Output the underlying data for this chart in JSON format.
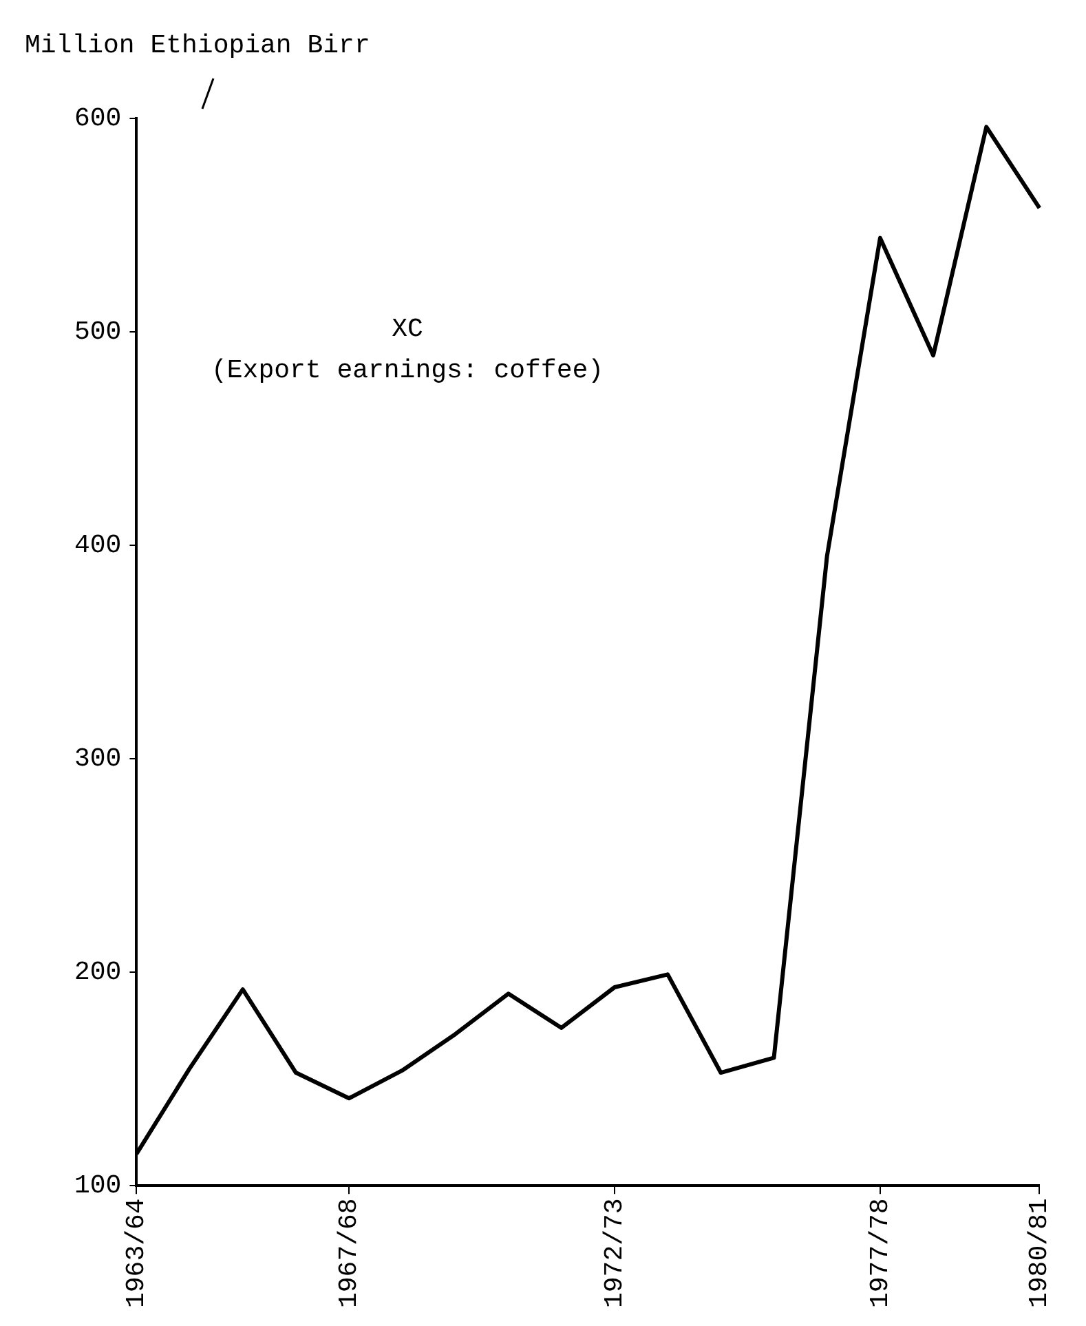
{
  "chart_data": {
    "type": "line",
    "ylabel": "Million Ethiopian Birr",
    "annotations": [
      "XC",
      "(Export earnings: coffee)"
    ],
    "categories": [
      "1963/64",
      null,
      null,
      null,
      "1967/68",
      null,
      null,
      null,
      null,
      "1972/73",
      null,
      null,
      null,
      null,
      "1977/78",
      null,
      null,
      "1980/81"
    ],
    "series": [
      {
        "color": "#000000",
        "values": [
          115,
          155,
          192,
          153,
          141,
          154,
          171,
          190,
          174,
          193,
          199,
          153,
          160,
          395,
          544,
          489,
          596,
          558
        ]
      }
    ],
    "ylim": [
      100,
      600
    ],
    "yticks": [
      100,
      200,
      300,
      400,
      500,
      600
    ],
    "grid": false,
    "legend": false,
    "marker": "none",
    "line_style": "solid"
  }
}
